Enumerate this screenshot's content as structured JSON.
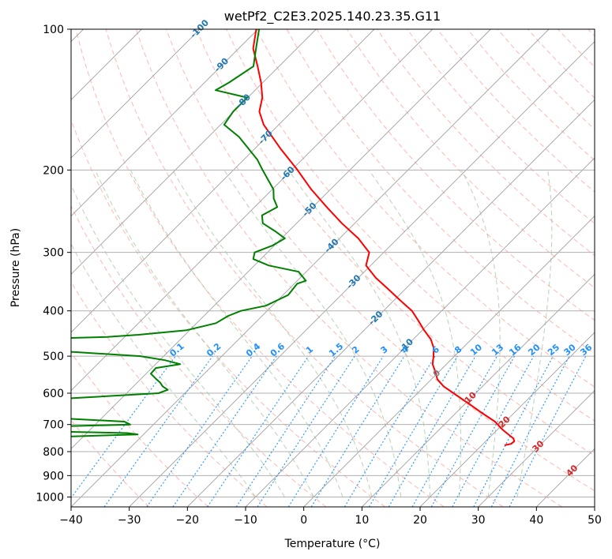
{
  "chart_data": {
    "type": "line",
    "title": "wetPf2_C2E3.2025.140.23.35.G11",
    "xlabel": "Temperature (°C)",
    "ylabel": "Pressure (hPa)",
    "xlim": [
      -40,
      50
    ],
    "ylim": [
      1050,
      100
    ],
    "y_scale": "log",
    "x_ticks": [
      "−40",
      "−30",
      "−20",
      "−10",
      "0",
      "10",
      "20",
      "30",
      "40",
      "50"
    ],
    "y_ticks": [
      "100",
      "200",
      "300",
      "400",
      "500",
      "600",
      "700",
      "800",
      "900",
      "1000"
    ],
    "grid": true,
    "skew_angle_deg": 45,
    "series": [
      {
        "color": "#ff0000",
        "pressure": [
          775,
          770,
          760,
          750,
          720,
          690,
          660,
          630,
          600,
          580,
          560,
          540,
          520,
          500,
          480,
          460,
          440,
          420,
          400,
          380,
          360,
          340,
          320,
          300,
          280,
          260,
          240,
          220,
          200,
          180,
          160,
          150,
          140,
          130,
          120,
          110,
          100
        ],
        "temperature": [
          23.9,
          24.8,
          24.9,
          24.3,
          21.1,
          18.2,
          14.3,
          10.4,
          6.2,
          3.3,
          1.0,
          -0.6,
          -2.4,
          -3.6,
          -5.0,
          -7.0,
          -9.7,
          -12.3,
          -15.1,
          -18.9,
          -22.8,
          -27.0,
          -30.8,
          -32.5,
          -36.8,
          -42.2,
          -47.6,
          -53.3,
          -59.0,
          -65.6,
          -72.6,
          -75.6,
          -77.5,
          -80.3,
          -83.7,
          -87.5,
          -90.3
        ]
      },
      {
        "color": "#008000",
        "pressure": [
          750,
          742,
          735,
          730,
          725,
          718,
          712,
          705,
          700,
          690,
          680,
          670,
          660,
          650,
          640,
          620,
          600,
          590,
          580,
          570,
          560,
          545,
          530,
          520,
          510,
          500,
          490,
          480,
          475,
          472,
          468,
          465,
          462,
          458,
          455,
          450,
          440,
          425,
          410,
          400,
          390,
          370,
          350,
          345,
          330,
          320,
          310,
          300,
          290,
          280,
          270,
          260,
          250,
          240,
          230,
          220,
          200,
          190,
          180,
          170,
          160,
          150,
          145,
          140,
          135,
          130,
          120,
          110,
          100
        ],
        "dewpoint": [
          -62.0,
          -52.0,
          -41.0,
          -43.0,
          -55.0,
          -65.0,
          -66.0,
          -53.0,
          -44.0,
          -45.5,
          -56.0,
          -70.0,
          -76.0,
          -72.0,
          -67.0,
          -63.0,
          -44.5,
          -43.5,
          -45.0,
          -46.0,
          -47.3,
          -49.2,
          -49.3,
          -45.8,
          -49.1,
          -54.0,
          -66.0,
          -81.0,
          -91.0,
          -92.0,
          -95.0,
          -91.0,
          -86.0,
          -72.0,
          -63.0,
          -58.0,
          -50.5,
          -46.7,
          -45.8,
          -44.5,
          -41.1,
          -39.1,
          -39.5,
          -38.5,
          -41.3,
          -47.5,
          -51.3,
          -52.2,
          -50.3,
          -49.4,
          -52.4,
          -55.8,
          -57.3,
          -56.1,
          -58.2,
          -59.8,
          -65.0,
          -67.7,
          -71.1,
          -74.7,
          -79.4,
          -80.1,
          -80.1,
          -80.1,
          -86.8,
          -85.8,
          -84.4,
          -87.0,
          -89.8
        ]
      }
    ],
    "isotherm_labels": [
      "-100",
      "-90",
      "-80",
      "-70",
      "-60",
      "-50",
      "-40",
      "-30",
      "-20",
      "-10",
      "0",
      "10",
      "20",
      "30",
      "40"
    ],
    "mixing_ratio_labels": [
      "0.1",
      "0.2",
      "0.4",
      "0.6",
      "1",
      "1.5",
      "2",
      "3",
      "4",
      "6",
      "8",
      "10",
      "13",
      "16",
      "20",
      "25",
      "30",
      "36"
    ],
    "colors": {
      "temperature": "#ff0000",
      "dewpoint": "#008000",
      "isotherm_cold": "#1f77b4",
      "isotherm_zero": "#808080",
      "isotherm_warm": "#d62728",
      "mixing_ratio": "#1e90ff",
      "dry_adiabat": "#fa8072",
      "moist_adiabat": "#8fbc8f",
      "hodo_curve": "#d2b48c",
      "grid": "#b0b0b0"
    }
  }
}
